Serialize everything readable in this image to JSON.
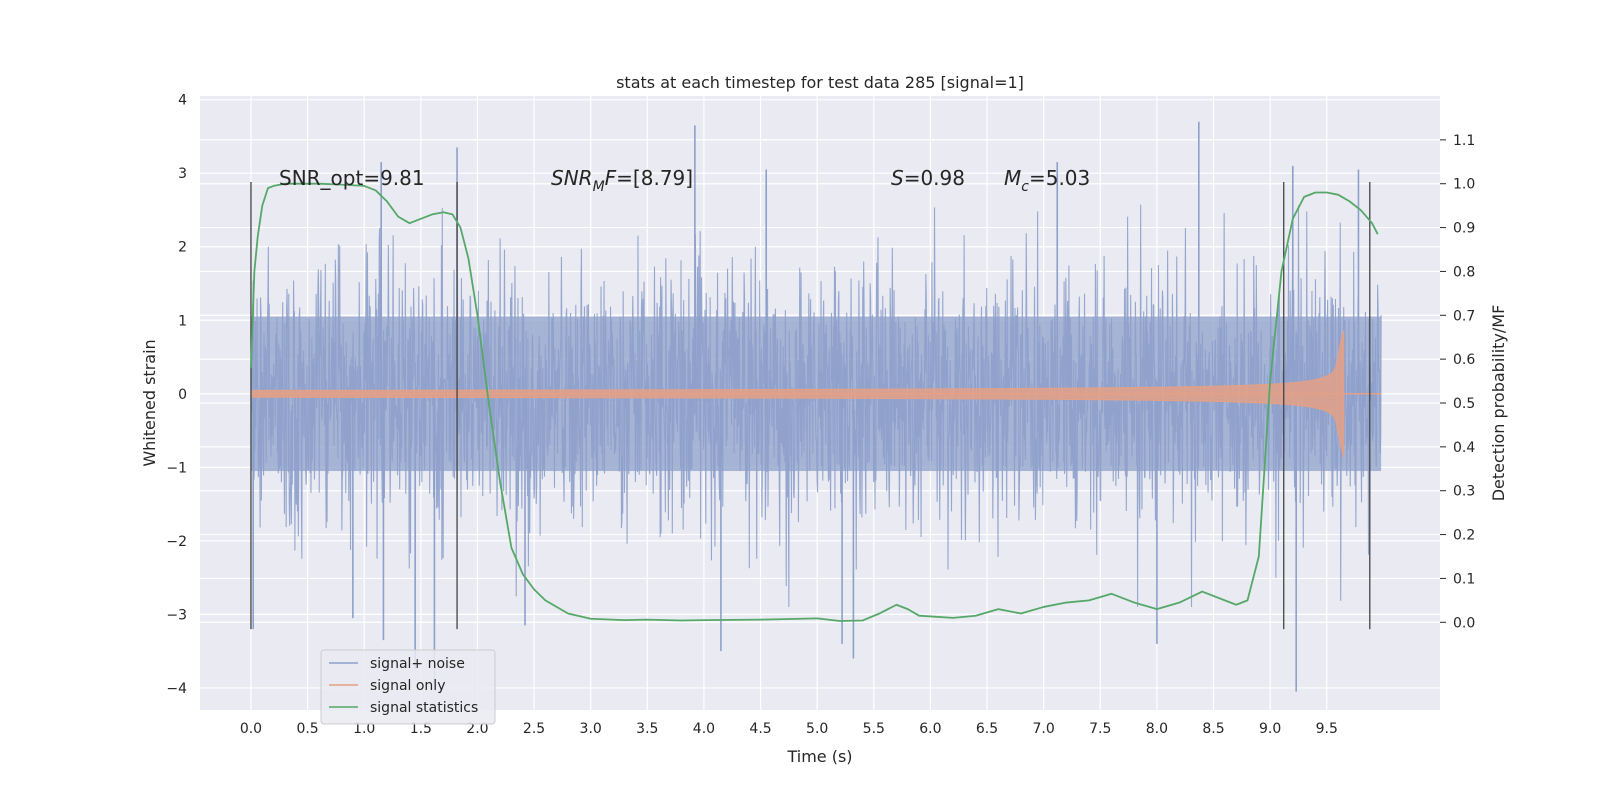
{
  "chart_data": {
    "type": "line",
    "title": "stats at each timestep for test data 285 [signal=1]",
    "xlabel": "Time (s)",
    "ylabel_left": "Whitened strain",
    "ylabel_right": "Detection probability/MF",
    "xlim": [
      -0.45,
      10.5
    ],
    "ylim_left": [
      -4.3,
      4.05
    ],
    "ylim_right": [
      -0.2,
      1.2
    ],
    "xticks": [
      0.0,
      0.5,
      1.0,
      1.5,
      2.0,
      2.5,
      3.0,
      3.5,
      4.0,
      4.5,
      5.0,
      5.5,
      6.0,
      6.5,
      7.0,
      7.5,
      8.0,
      8.5,
      9.0,
      9.5
    ],
    "xtick_labels": [
      "0.0",
      "0.5",
      "1.0",
      "1.5",
      "2.0",
      "2.5",
      "3.0",
      "3.5",
      "4.0",
      "4.5",
      "5.0",
      "5.5",
      "6.0",
      "6.5",
      "7.0",
      "7.5",
      "8.0",
      "8.5",
      "9.0",
      "9.5"
    ],
    "yticks_left": [
      -4,
      -3,
      -2,
      -1,
      0,
      1,
      2,
      3,
      4
    ],
    "ytick_labels_left": [
      "−4",
      "−3",
      "−2",
      "−1",
      "0",
      "1",
      "2",
      "3",
      "4"
    ],
    "yticks_right": [
      0.0,
      0.1,
      0.2,
      0.3,
      0.4,
      0.5,
      0.6,
      0.7,
      0.8,
      0.9,
      1.0,
      1.1
    ],
    "ytick_labels_right": [
      "0.0",
      "0.1",
      "0.2",
      "0.3",
      "0.4",
      "0.5",
      "0.6",
      "0.7",
      "0.8",
      "0.9",
      "1.0",
      "1.1"
    ],
    "grid": true,
    "legend_position": "lower-left",
    "annotations": {
      "snr_opt": "SNR_opt=9.81",
      "snr_mf_base": "SNR",
      "snr_mf_sub": "M",
      "snr_mf_f": "F",
      "snr_mf_val": "=[8.79]",
      "s_sym": "S",
      "s_val": "=0.98",
      "mc_sym": "M",
      "mc_sub": "c",
      "mc_val": "=5.03"
    },
    "vertical_markers": [
      0.0,
      1.82,
      9.12,
      9.88
    ],
    "vertical_marker_range": [
      -3.2,
      2.88
    ],
    "series": [
      {
        "name": "signal+ noise",
        "color": "#8da0cb",
        "kind": "noise",
        "x_range": [
          0.0,
          9.98
        ],
        "typical_envelope": 1.4,
        "extremes": [
          {
            "x": 0.02,
            "y": -3.2
          },
          {
            "x": 0.9,
            "y": -3.05
          },
          {
            "x": 1.15,
            "y": 3.15
          },
          {
            "x": 1.17,
            "y": -3.35
          },
          {
            "x": 1.45,
            "y": -3.75
          },
          {
            "x": 1.62,
            "y": -3.95
          },
          {
            "x": 1.82,
            "y": 3.35
          },
          {
            "x": 2.42,
            "y": -3.15
          },
          {
            "x": 3.92,
            "y": 3.65
          },
          {
            "x": 4.15,
            "y": -3.5
          },
          {
            "x": 4.55,
            "y": 3.05
          },
          {
            "x": 5.22,
            "y": -3.4
          },
          {
            "x": 5.32,
            "y": -3.6
          },
          {
            "x": 7.12,
            "y": 3.15
          },
          {
            "x": 8.37,
            "y": 3.7
          },
          {
            "x": 8.0,
            "y": -3.4
          },
          {
            "x": 9.2,
            "y": 3.1
          },
          {
            "x": 9.23,
            "y": -4.05
          },
          {
            "x": 9.78,
            "y": 3.05
          }
        ]
      },
      {
        "name": "signal only",
        "color": "#e5a085",
        "kind": "chirp",
        "x_range": [
          0.0,
          9.98
        ],
        "merger_time": 9.65,
        "peak_amplitude": [
          0.92,
          -1.0
        ]
      },
      {
        "name": "signal statistics",
        "color": "#55a868",
        "axis": "right",
        "x": [
          0.0,
          0.03,
          0.06,
          0.1,
          0.15,
          0.2,
          0.3,
          0.4,
          0.6,
          0.8,
          1.0,
          1.1,
          1.2,
          1.3,
          1.4,
          1.5,
          1.6,
          1.7,
          1.78,
          1.85,
          1.92,
          2.0,
          2.1,
          2.2,
          2.3,
          2.4,
          2.5,
          2.6,
          2.8,
          3.0,
          3.3,
          3.5,
          3.8,
          4.0,
          4.5,
          5.0,
          5.2,
          5.4,
          5.55,
          5.7,
          5.8,
          5.9,
          6.2,
          6.4,
          6.6,
          6.8,
          7.0,
          7.2,
          7.4,
          7.6,
          7.8,
          8.0,
          8.2,
          8.4,
          8.6,
          8.7,
          8.8,
          8.9,
          9.0,
          9.1,
          9.2,
          9.3,
          9.4,
          9.5,
          9.6,
          9.7,
          9.8,
          9.9,
          9.95
        ],
        "values": [
          0.58,
          0.8,
          0.88,
          0.95,
          0.99,
          0.995,
          1.0,
          1.0,
          1.0,
          0.998,
          0.995,
          0.985,
          0.96,
          0.925,
          0.91,
          0.92,
          0.93,
          0.935,
          0.93,
          0.9,
          0.83,
          0.7,
          0.5,
          0.32,
          0.17,
          0.11,
          0.075,
          0.05,
          0.02,
          0.008,
          0.005,
          0.006,
          0.004,
          0.005,
          0.006,
          0.009,
          0.003,
          0.004,
          0.02,
          0.04,
          0.03,
          0.015,
          0.01,
          0.015,
          0.03,
          0.02,
          0.035,
          0.045,
          0.05,
          0.065,
          0.045,
          0.03,
          0.045,
          0.07,
          0.05,
          0.04,
          0.05,
          0.15,
          0.55,
          0.8,
          0.92,
          0.97,
          0.98,
          0.98,
          0.975,
          0.96,
          0.94,
          0.91,
          0.885
        ]
      }
    ]
  }
}
